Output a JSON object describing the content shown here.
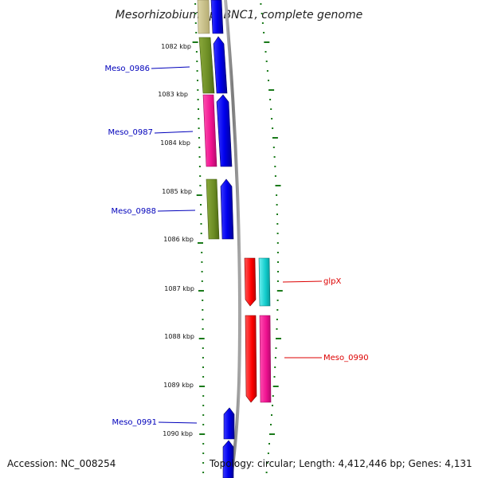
{
  "title": "Mesorhizobium sp. BNC1, complete genome",
  "footer": {
    "accession": "Accession: NC_008254",
    "topology": "Topology: circular; Length: 4,412,446 bp; Genes: 4,131"
  },
  "kbp_ticks": [
    "1082 kbp",
    "1083 kbp",
    "1084 kbp",
    "1085 kbp",
    "1086 kbp",
    "1087 kbp",
    "1088 kbp",
    "1089 kbp",
    "1090 kbp"
  ],
  "gene_labels": [
    {
      "name": "Meso_0986",
      "side": "left"
    },
    {
      "name": "Meso_0987",
      "side": "left"
    },
    {
      "name": "Meso_0988",
      "side": "left"
    },
    {
      "name": "glpX",
      "side": "right"
    },
    {
      "name": "Meso_0990",
      "side": "right"
    },
    {
      "name": "Meso_0991",
      "side": "left"
    }
  ],
  "colors": {
    "forward_gene": "#0000ff",
    "left_label": "#0000bb",
    "right_label": "#dd0000",
    "tick": "#1a7a1a",
    "backbone": "#8a8a8a",
    "olive": "#6b8c23",
    "khaki": "#c8c08a",
    "magenta": "#ee1190",
    "red": "#ff0000",
    "cyan": "#11cccc"
  }
}
